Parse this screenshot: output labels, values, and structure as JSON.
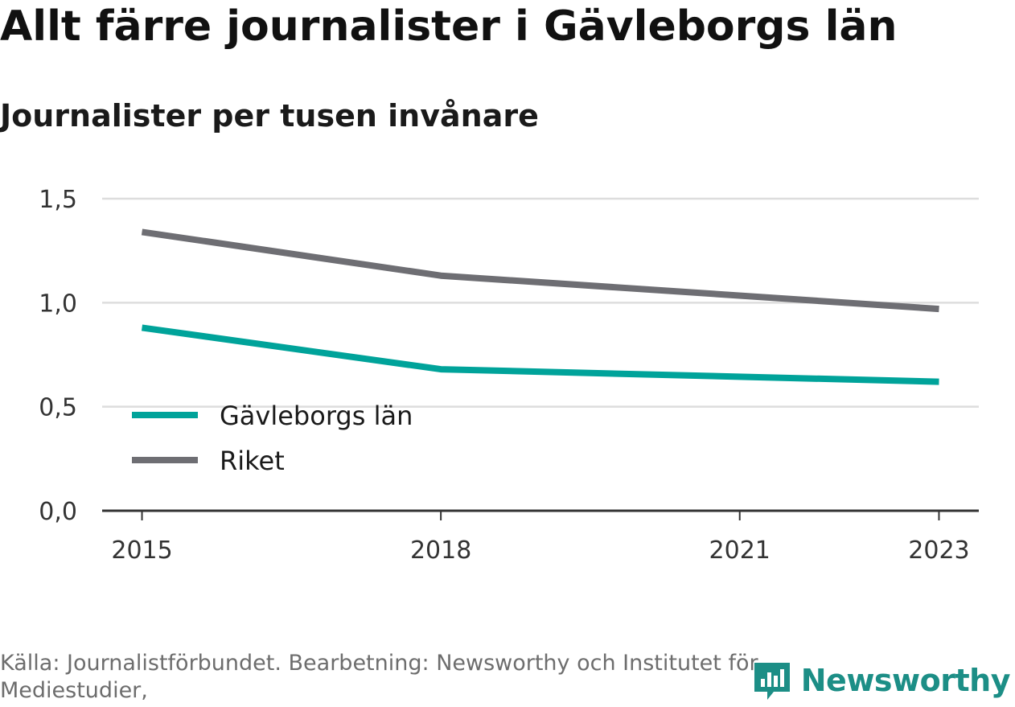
{
  "header": {
    "title": "Allt färre journalister i Gävleborgs län",
    "subtitle": "Journalister per tusen invånare"
  },
  "footer": {
    "source": "Källa: Journalistförbundet. Bearbetning: Newsworthy och Institutet för Mediestudier,",
    "brand": "Newsworthy",
    "brand_icon": "newsworthy-logo-icon"
  },
  "colors": {
    "gavleborg": "#00a39a",
    "riket": "#6e6e73",
    "grid": "#dddddd",
    "axis": "#333333",
    "brand": "#1c8e86"
  },
  "chart_data": {
    "type": "line",
    "title": "Allt färre journalister i Gävleborgs län",
    "subtitle": "Journalister per tusen invånare",
    "x": [
      2015,
      2018,
      2023
    ],
    "x_ticks": [
      2015,
      2018,
      2021,
      2023
    ],
    "x_tick_labels": [
      "2015",
      "2018",
      "2021",
      "2023"
    ],
    "xlim": [
      2014.6,
      2023.4
    ],
    "y_ticks": [
      0,
      0.5,
      1.0,
      1.5
    ],
    "y_tick_labels": [
      "0,0",
      "0,5",
      "1,0",
      "1,5"
    ],
    "ylim": [
      0,
      1.5
    ],
    "grid": true,
    "legend_position": "bottom-left",
    "series": [
      {
        "name": "Gävleborgs län",
        "color": "#00a39a",
        "values": [
          0.88,
          0.68,
          0.62
        ]
      },
      {
        "name": "Riket",
        "color": "#6e6e73",
        "values": [
          1.34,
          1.13,
          0.97
        ]
      }
    ]
  }
}
